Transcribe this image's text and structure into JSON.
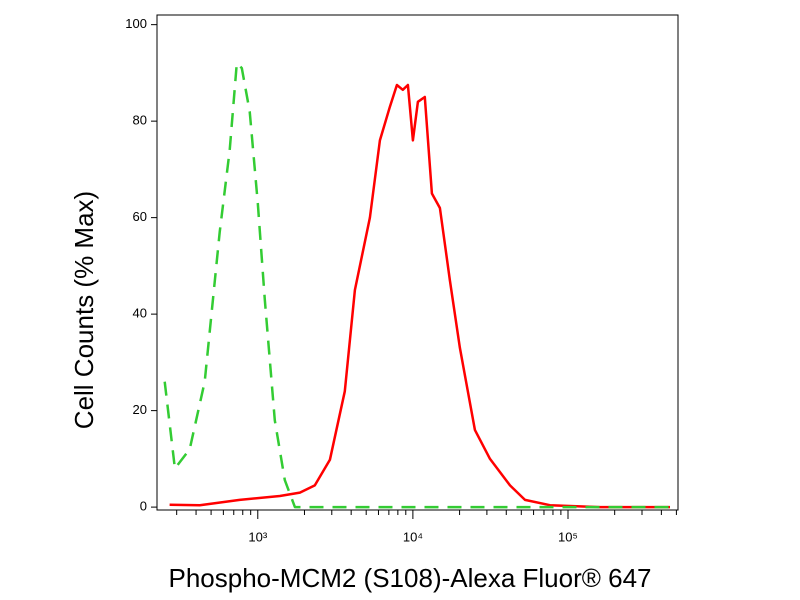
{
  "chart_data": {
    "type": "line",
    "xscale": "log",
    "x_label": "Phospho-MCM2 (S108)-Alexa Fluor® 647",
    "y_label": "Cell Counts (% Max)",
    "xlim": [
      224,
      512000
    ],
    "ylim": [
      -0.6,
      102
    ],
    "xticks": [
      {
        "value": 1000,
        "label": "10³"
      },
      {
        "value": 10000,
        "label": "10⁴"
      },
      {
        "value": 100000,
        "label": "10⁵"
      }
    ],
    "yticks": [
      0,
      20,
      40,
      60,
      80,
      100
    ],
    "series": [
      {
        "color": "#ff0000",
        "dashed": false,
        "x": [
          270,
          423,
          765,
          1387,
          1868,
          2333,
          2917,
          3640,
          4227,
          5284,
          6124,
          7112,
          7889,
          8616,
          9290,
          10000,
          10770,
          11940,
          13270,
          14930,
          17330,
          20100,
          25120,
          31400,
          42270,
          52840,
          76530,
          160700,
          455000
        ],
        "values": [
          0.5,
          0.4,
          1.5,
          2.3,
          3,
          4.5,
          9.8,
          24,
          45,
          60,
          76,
          83,
          87.5,
          86.5,
          87.5,
          76,
          84,
          85,
          65,
          62,
          47,
          33,
          16,
          10,
          4.5,
          1.5,
          0.4,
          0,
          0
        ]
      },
      {
        "color": "#33cc33",
        "dashed": true,
        "x": [
          251,
          292,
          364,
          455,
          568,
          659,
          732,
          789,
          887,
          1000,
          1110,
          1288,
          1493,
          1734,
          8240,
          455000
        ],
        "values": [
          26,
          8,
          12,
          26,
          57,
          74,
          92,
          91,
          82,
          63,
          43,
          18,
          5.6,
          0,
          0,
          0
        ]
      }
    ]
  }
}
